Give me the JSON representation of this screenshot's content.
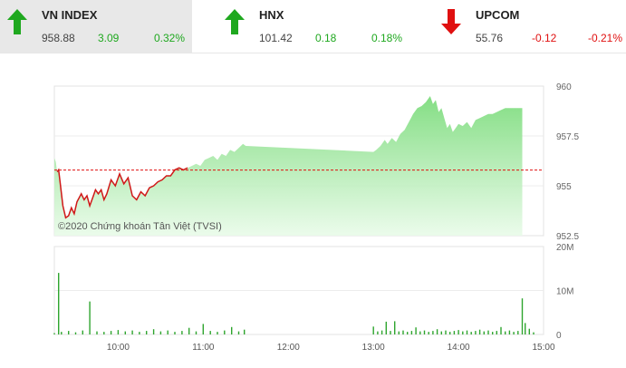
{
  "tickers": [
    {
      "name": "VN INDEX",
      "price": "958.88",
      "change": "3.09",
      "percent": "0.32%",
      "direction": "up",
      "arrow_icon": "arrow-up-icon"
    },
    {
      "name": "HNX",
      "price": "101.42",
      "change": "0.18",
      "percent": "0.18%",
      "direction": "up",
      "arrow_icon": "arrow-up-icon"
    },
    {
      "name": "UPCOM",
      "price": "55.76",
      "change": "-0.12",
      "percent": "-0.21%",
      "direction": "down",
      "arrow_icon": "arrow-down-icon"
    }
  ],
  "colors": {
    "up": "#1fa81f",
    "down": "#e01010",
    "area_fill": "#8fe38f",
    "reference_line": "#e01010"
  },
  "watermark": "©2020 Chứng khoán Tân Việt (TVSI)",
  "chart_data": [
    {
      "type": "area",
      "ylim": [
        952.5,
        960
      ],
      "ytick_labels": [
        "960",
        "957.5",
        "955",
        "952.5"
      ],
      "reference": 955.79,
      "series": [
        {
          "points": [
            [
              "09:15",
              956.4
            ],
            [
              "09:16",
              956.2
            ],
            [
              "09:17",
              955.7
            ],
            [
              "09:18",
              955.8
            ],
            [
              "09:19",
              955.2
            ],
            [
              "09:21",
              954.0
            ],
            [
              "09:23",
              953.4
            ],
            [
              "09:25",
              953.5
            ],
            [
              "09:27",
              953.9
            ],
            [
              "09:29",
              953.6
            ],
            [
              "09:31",
              954.2
            ],
            [
              "09:34",
              954.6
            ],
            [
              "09:36",
              954.3
            ],
            [
              "09:38",
              954.5
            ],
            [
              "09:40",
              954.0
            ],
            [
              "09:42",
              954.4
            ],
            [
              "09:44",
              954.8
            ],
            [
              "09:46",
              954.6
            ],
            [
              "09:48",
              954.8
            ],
            [
              "09:50",
              954.3
            ],
            [
              "09:52",
              954.6
            ],
            [
              "09:55",
              955.3
            ],
            [
              "09:58",
              955.0
            ],
            [
              "10:01",
              955.6
            ],
            [
              "10:04",
              955.1
            ],
            [
              "10:07",
              955.4
            ],
            [
              "10:10",
              954.5
            ],
            [
              "10:13",
              954.3
            ],
            [
              "10:16",
              954.7
            ],
            [
              "10:19",
              954.5
            ],
            [
              "10:22",
              954.9
            ],
            [
              "10:25",
              955.0
            ],
            [
              "10:28",
              955.2
            ],
            [
              "10:31",
              955.3
            ],
            [
              "10:34",
              955.5
            ],
            [
              "10:37",
              955.5
            ],
            [
              "10:40",
              955.8
            ],
            [
              "10:43",
              955.9
            ],
            [
              "10:46",
              955.8
            ],
            [
              "10:49",
              955.9
            ],
            [
              "10:52",
              956.0
            ],
            [
              "10:55",
              956.1
            ],
            [
              "10:58",
              956.0
            ],
            [
              "11:01",
              956.3
            ],
            [
              "11:04",
              956.4
            ],
            [
              "11:07",
              956.5
            ],
            [
              "11:10",
              956.3
            ],
            [
              "11:13",
              956.6
            ],
            [
              "11:16",
              956.5
            ],
            [
              "11:19",
              956.8
            ],
            [
              "11:22",
              956.7
            ],
            [
              "11:25",
              956.9
            ],
            [
              "11:28",
              957.1
            ],
            [
              "11:30",
              957.0
            ],
            [
              "13:00",
              956.7
            ],
            [
              "13:02",
              956.8
            ],
            [
              "13:05",
              957.0
            ],
            [
              "13:08",
              957.3
            ],
            [
              "13:10",
              957.1
            ],
            [
              "13:13",
              957.4
            ],
            [
              "13:16",
              957.2
            ],
            [
              "13:19",
              957.6
            ],
            [
              "13:22",
              957.8
            ],
            [
              "13:25",
              958.2
            ],
            [
              "13:28",
              958.6
            ],
            [
              "13:31",
              958.9
            ],
            [
              "13:34",
              959.0
            ],
            [
              "13:37",
              959.2
            ],
            [
              "13:40",
              959.5
            ],
            [
              "13:42",
              959.1
            ],
            [
              "13:44",
              959.3
            ],
            [
              "13:46",
              958.7
            ],
            [
              "13:48",
              958.9
            ],
            [
              "13:50",
              958.4
            ],
            [
              "13:52",
              957.9
            ],
            [
              "13:54",
              958.1
            ],
            [
              "13:56",
              957.7
            ],
            [
              "13:58",
              957.9
            ],
            [
              "14:00",
              958.1
            ],
            [
              "14:03",
              958.0
            ],
            [
              "14:06",
              958.2
            ],
            [
              "14:09",
              957.9
            ],
            [
              "14:12",
              958.3
            ],
            [
              "14:15",
              958.4
            ],
            [
              "14:18",
              958.5
            ],
            [
              "14:21",
              958.6
            ],
            [
              "14:24",
              958.6
            ],
            [
              "14:27",
              958.7
            ],
            [
              "14:30",
              958.8
            ],
            [
              "14:33",
              958.9
            ],
            [
              "14:36",
              958.9
            ],
            [
              "14:40",
              958.9
            ],
            [
              "14:45",
              958.9
            ]
          ]
        }
      ]
    },
    {
      "type": "bar",
      "ylim": [
        0,
        20
      ],
      "ytick_labels": [
        "20M",
        "10M",
        "0"
      ],
      "xtick_labels": [
        "10:00",
        "11:00",
        "12:00",
        "13:00",
        "14:00",
        "15:00"
      ],
      "series": [
        {
          "points": [
            [
              "09:15",
              0.3
            ],
            [
              "09:18",
              14.0
            ],
            [
              "09:20",
              0.6
            ],
            [
              "09:25",
              0.8
            ],
            [
              "09:30",
              0.5
            ],
            [
              "09:35",
              0.9
            ],
            [
              "09:40",
              7.5
            ],
            [
              "09:45",
              0.7
            ],
            [
              "09:50",
              0.6
            ],
            [
              "09:55",
              0.8
            ],
            [
              "10:00",
              1.0
            ],
            [
              "10:05",
              0.7
            ],
            [
              "10:10",
              0.9
            ],
            [
              "10:15",
              0.6
            ],
            [
              "10:20",
              0.8
            ],
            [
              "10:25",
              1.2
            ],
            [
              "10:30",
              0.7
            ],
            [
              "10:35",
              0.9
            ],
            [
              "10:40",
              0.6
            ],
            [
              "10:45",
              0.8
            ],
            [
              "10:50",
              1.5
            ],
            [
              "10:55",
              0.7
            ],
            [
              "11:00",
              2.4
            ],
            [
              "11:05",
              0.8
            ],
            [
              "11:10",
              0.6
            ],
            [
              "11:15",
              0.9
            ],
            [
              "11:20",
              1.7
            ],
            [
              "11:25",
              0.7
            ],
            [
              "11:29",
              1.1
            ],
            [
              "13:00",
              1.8
            ],
            [
              "13:03",
              0.7
            ],
            [
              "13:06",
              0.9
            ],
            [
              "13:09",
              2.9
            ],
            [
              "13:12",
              0.8
            ],
            [
              "13:15",
              3.0
            ],
            [
              "13:18",
              0.7
            ],
            [
              "13:21",
              0.9
            ],
            [
              "13:24",
              0.6
            ],
            [
              "13:27",
              0.8
            ],
            [
              "13:30",
              1.6
            ],
            [
              "13:33",
              0.7
            ],
            [
              "13:36",
              0.9
            ],
            [
              "13:39",
              0.6
            ],
            [
              "13:42",
              0.8
            ],
            [
              "13:45",
              1.2
            ],
            [
              "13:48",
              0.7
            ],
            [
              "13:51",
              0.9
            ],
            [
              "13:54",
              0.6
            ],
            [
              "13:57",
              0.8
            ],
            [
              "14:00",
              1.0
            ],
            [
              "14:03",
              0.7
            ],
            [
              "14:06",
              0.9
            ],
            [
              "14:09",
              0.6
            ],
            [
              "14:12",
              0.8
            ],
            [
              "14:15",
              1.1
            ],
            [
              "14:18",
              0.7
            ],
            [
              "14:21",
              0.9
            ],
            [
              "14:24",
              0.6
            ],
            [
              "14:27",
              0.8
            ],
            [
              "14:30",
              1.7
            ],
            [
              "14:33",
              0.7
            ],
            [
              "14:36",
              0.9
            ],
            [
              "14:39",
              0.6
            ],
            [
              "14:42",
              0.8
            ],
            [
              "14:45",
              8.2
            ],
            [
              "14:47",
              2.6
            ],
            [
              "14:50",
              1.3
            ],
            [
              "14:53",
              0.5
            ]
          ]
        }
      ]
    }
  ]
}
